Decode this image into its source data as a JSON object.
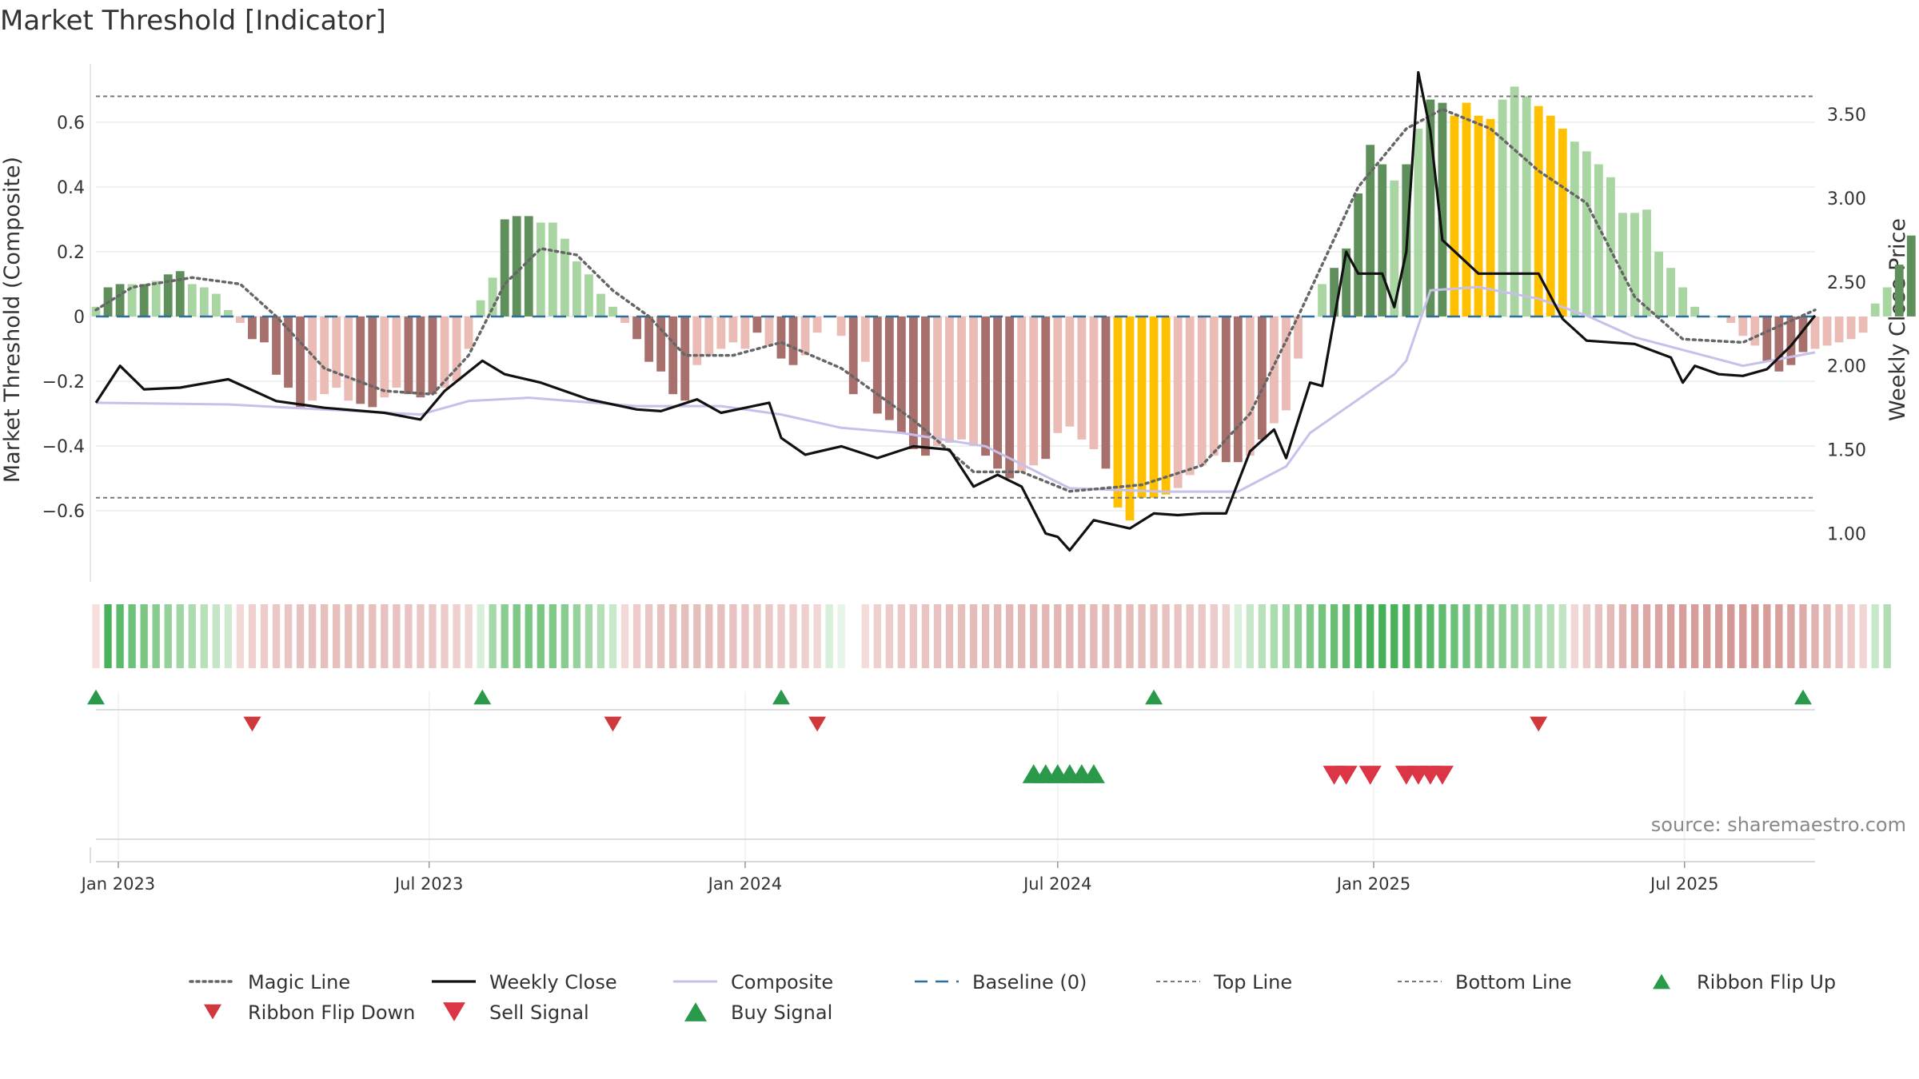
{
  "chart_data": {
    "type": "bar",
    "title": "Market Threshold [Indicator]",
    "ylabel_left": "Market Threshold (Composite)",
    "ylabel_right": "Weekly Close Price",
    "source": "source: sharemaestro.com",
    "left_axis": {
      "ylim": [
        -0.8,
        0.78
      ],
      "ticks": [
        0.6,
        0.4,
        0.2,
        0,
        -0.2,
        -0.4,
        -0.6
      ],
      "tick_labels": [
        "0.6",
        "0.4",
        "0.2",
        "0",
        "−0.2",
        "−0.4",
        "−0.6"
      ]
    },
    "right_axis": {
      "ylim": [
        0.75,
        3.8
      ],
      "ticks": [
        3.5,
        3.0,
        2.5,
        2.0,
        1.5,
        1.0
      ],
      "tick_labels": [
        "3.50",
        "3.00",
        "2.50",
        "2.00",
        "1.50",
        "1.00"
      ]
    },
    "x_axis": {
      "start_date": "2022-12-19",
      "end_date": "2025-09-15",
      "ticks": [
        "2023-01-01",
        "2023-07-01",
        "2024-01-01",
        "2024-07-01",
        "2025-01-01",
        "2025-07-01"
      ],
      "tick_labels": [
        "Jan 2023",
        "Jul 2023",
        "Jan 2024",
        "Jul 2024",
        "Jan 2025",
        "Jul 2025"
      ]
    },
    "top_line": 0.68,
    "bottom_line": -0.56,
    "baseline": 0,
    "grid": true,
    "legend_position": "bottom",
    "colors": {
      "dark_green": "#5f8f5a",
      "light_green": "#a8d5a2",
      "dark_red": "#a8706c",
      "light_red": "#ebbcb6",
      "extreme": "#ffc000",
      "weekly_close": "#111111",
      "composite": "#c8c0ea",
      "magic": "#666666",
      "baseline": "#2d6e9c",
      "threshold_line": "#777777",
      "flip_up": "#2a9a4a",
      "flip_down": "#d0383c"
    },
    "series": [
      {
        "name": "Composite",
        "kind": "bar",
        "start_date": "2022-12-19",
        "values": [
          0.03,
          0.09,
          0.1,
          0.1,
          0.1,
          0.11,
          0.13,
          0.14,
          0.1,
          0.09,
          0.07,
          0.02,
          -0.02,
          -0.07,
          -0.08,
          -0.18,
          -0.22,
          -0.28,
          -0.26,
          -0.24,
          -0.22,
          -0.26,
          -0.27,
          -0.28,
          -0.25,
          -0.22,
          -0.24,
          -0.25,
          -0.24,
          -0.22,
          -0.2,
          -0.1,
          0.05,
          0.12,
          0.3,
          0.31,
          0.31,
          0.29,
          0.29,
          0.24,
          0.17,
          0.13,
          0.07,
          0.03,
          -0.02,
          -0.07,
          -0.14,
          -0.17,
          -0.24,
          -0.26,
          -0.15,
          -0.12,
          -0.1,
          -0.08,
          -0.1,
          -0.05,
          -0.09,
          -0.13,
          -0.15,
          -0.12,
          -0.05,
          0.0,
          -0.06,
          -0.24,
          -0.14,
          -0.3,
          -0.32,
          -0.36,
          -0.41,
          -0.43,
          -0.4,
          -0.39,
          -0.38,
          -0.4,
          -0.43,
          -0.47,
          -0.5,
          -0.48,
          -0.46,
          -0.44,
          -0.36,
          -0.34,
          -0.38,
          -0.41,
          -0.47,
          -0.59,
          -0.63,
          -0.56,
          -0.56,
          -0.55,
          -0.53,
          -0.49,
          -0.46,
          -0.43,
          -0.45,
          -0.45,
          -0.43,
          -0.38,
          -0.33,
          -0.29,
          -0.13,
          0.0,
          0.1,
          0.15,
          0.21,
          0.38,
          0.53,
          0.47,
          0.42,
          0.47,
          0.58,
          0.67,
          0.66,
          0.62,
          0.66,
          0.62,
          0.61,
          0.67,
          0.71,
          0.68,
          0.65,
          0.62,
          0.58,
          0.54,
          0.51,
          0.47,
          0.43,
          0.32,
          0.32,
          0.33,
          0.2,
          0.15,
          0.09,
          0.03,
          0.0,
          0.0,
          -0.02,
          -0.06,
          -0.09,
          -0.14,
          -0.17,
          -0.15,
          -0.11,
          -0.1,
          -0.09,
          -0.08,
          -0.07,
          -0.05,
          0.04,
          0.09,
          0.16,
          0.25
        ],
        "shade": [
          "L",
          "D",
          "D",
          "L",
          "D",
          "L",
          "D",
          "D",
          "L",
          "L",
          "L",
          "L",
          "L",
          "D",
          "D",
          "D",
          "D",
          "D",
          "L",
          "L",
          "L",
          "L",
          "D",
          "D",
          "L",
          "L",
          "D",
          "D",
          "D",
          "L",
          "L",
          "L",
          "L",
          "L",
          "D",
          "D",
          "D",
          "L",
          "L",
          "L",
          "L",
          "L",
          "L",
          "L",
          "L",
          "D",
          "D",
          "D",
          "D",
          "D",
          "L",
          "L",
          "L",
          "L",
          "L",
          "D",
          "L",
          "D",
          "D",
          "L",
          "L",
          "L",
          "L",
          "D",
          "L",
          "D",
          "D",
          "D",
          "D",
          "D",
          "L",
          "L",
          "L",
          "L",
          "D",
          "D",
          "D",
          "L",
          "L",
          "D",
          "L",
          "L",
          "L",
          "L",
          "D",
          "E",
          "E",
          "E",
          "E",
          "E",
          "L",
          "L",
          "L",
          "L",
          "D",
          "D",
          "L",
          "D",
          "L",
          "L",
          "L",
          "L",
          "L",
          "D",
          "D",
          "D",
          "D",
          "D",
          "L",
          "D",
          "L",
          "D",
          "D",
          "E",
          "E",
          "E",
          "E",
          "L",
          "L",
          "L",
          "E",
          "E",
          "E",
          "L",
          "L",
          "L",
          "L",
          "L",
          "L",
          "L",
          "L",
          "L",
          "L",
          "L",
          "L",
          "L",
          "L",
          "L",
          "L",
          "D",
          "D",
          "D",
          "D",
          "L",
          "L",
          "L",
          "L",
          "L",
          "L",
          "L",
          "D",
          "D",
          "D"
        ]
      },
      {
        "name": "Weekly Close",
        "kind": "line",
        "axis": "right",
        "points": [
          [
            "2022-12-19",
            1.78
          ],
          [
            "2023-01-02",
            2.0
          ],
          [
            "2023-01-16",
            1.86
          ],
          [
            "2023-02-06",
            1.87
          ],
          [
            "2023-03-06",
            1.92
          ],
          [
            "2023-04-03",
            1.79
          ],
          [
            "2023-05-01",
            1.75
          ],
          [
            "2023-06-05",
            1.72
          ],
          [
            "2023-06-26",
            1.68
          ],
          [
            "2023-07-10",
            1.85
          ],
          [
            "2023-08-01",
            2.03
          ],
          [
            "2023-08-14",
            1.95
          ],
          [
            "2023-09-04",
            1.9
          ],
          [
            "2023-10-02",
            1.8
          ],
          [
            "2023-10-30",
            1.74
          ],
          [
            "2023-11-13",
            1.73
          ],
          [
            "2023-12-04",
            1.8
          ],
          [
            "2023-12-18",
            1.72
          ],
          [
            "2024-01-15",
            1.78
          ],
          [
            "2024-01-22",
            1.57
          ],
          [
            "2024-02-05",
            1.47
          ],
          [
            "2024-02-26",
            1.52
          ],
          [
            "2024-03-18",
            1.45
          ],
          [
            "2024-04-08",
            1.52
          ],
          [
            "2024-04-29",
            1.5
          ],
          [
            "2024-05-13",
            1.28
          ],
          [
            "2024-05-27",
            1.35
          ],
          [
            "2024-06-10",
            1.28
          ],
          [
            "2024-06-24",
            1.0
          ],
          [
            "2024-07-01",
            0.98
          ],
          [
            "2024-07-08",
            0.9
          ],
          [
            "2024-07-22",
            1.08
          ],
          [
            "2024-08-12",
            1.03
          ],
          [
            "2024-08-26",
            1.12
          ],
          [
            "2024-09-09",
            1.11
          ],
          [
            "2024-09-23",
            1.12
          ],
          [
            "2024-10-07",
            1.12
          ],
          [
            "2024-10-21",
            1.49
          ],
          [
            "2024-11-04",
            1.62
          ],
          [
            "2024-11-11",
            1.45
          ],
          [
            "2024-11-25",
            1.9
          ],
          [
            "2024-12-02",
            1.88
          ],
          [
            "2024-12-16",
            2.68
          ],
          [
            "2024-12-23",
            2.55
          ],
          [
            "2025-01-06",
            2.55
          ],
          [
            "2025-01-13",
            2.35
          ],
          [
            "2025-01-20",
            2.68
          ],
          [
            "2025-01-27",
            3.75
          ],
          [
            "2025-02-03",
            3.4
          ],
          [
            "2025-02-10",
            2.75
          ],
          [
            "2025-03-03",
            2.55
          ],
          [
            "2025-04-07",
            2.55
          ],
          [
            "2025-04-21",
            2.28
          ],
          [
            "2025-05-05",
            2.15
          ],
          [
            "2025-06-02",
            2.13
          ],
          [
            "2025-06-23",
            2.05
          ],
          [
            "2025-06-30",
            1.9
          ],
          [
            "2025-07-07",
            2.0
          ],
          [
            "2025-07-21",
            1.95
          ],
          [
            "2025-08-04",
            1.94
          ],
          [
            "2025-08-18",
            1.98
          ],
          [
            "2025-09-01",
            2.12
          ],
          [
            "2025-09-15",
            2.3
          ]
        ]
      },
      {
        "name": "Magic Line",
        "kind": "line",
        "style": "dotted",
        "points": [
          [
            "2022-12-19",
            0.02
          ],
          [
            "2023-01-09",
            0.09
          ],
          [
            "2023-02-13",
            0.12
          ],
          [
            "2023-03-13",
            0.1
          ],
          [
            "2023-04-03",
            0.0
          ],
          [
            "2023-05-01",
            -0.16
          ],
          [
            "2023-06-05",
            -0.23
          ],
          [
            "2023-07-03",
            -0.24
          ],
          [
            "2023-07-24",
            -0.12
          ],
          [
            "2023-08-14",
            0.1
          ],
          [
            "2023-09-04",
            0.21
          ],
          [
            "2023-09-25",
            0.19
          ],
          [
            "2023-10-16",
            0.08
          ],
          [
            "2023-11-06",
            0.0
          ],
          [
            "2023-11-27",
            -0.12
          ],
          [
            "2023-12-25",
            -0.12
          ],
          [
            "2024-01-22",
            -0.08
          ],
          [
            "2024-02-26",
            -0.16
          ],
          [
            "2024-04-08",
            -0.32
          ],
          [
            "2024-05-13",
            -0.48
          ],
          [
            "2024-06-10",
            -0.48
          ],
          [
            "2024-07-08",
            -0.54
          ],
          [
            "2024-08-19",
            -0.52
          ],
          [
            "2024-09-23",
            -0.46
          ],
          [
            "2024-10-21",
            -0.3
          ],
          [
            "2024-11-18",
            0.0
          ],
          [
            "2024-12-23",
            0.4
          ],
          [
            "2025-01-20",
            0.58
          ],
          [
            "2025-02-10",
            0.64
          ],
          [
            "2025-03-10",
            0.58
          ],
          [
            "2025-04-07",
            0.45
          ],
          [
            "2025-05-05",
            0.35
          ],
          [
            "2025-06-02",
            0.06
          ],
          [
            "2025-06-30",
            -0.07
          ],
          [
            "2025-08-04",
            -0.08
          ],
          [
            "2025-09-15",
            0.02
          ]
        ]
      },
      {
        "name": "Composite",
        "kind": "line",
        "axis": "right",
        "points": [
          [
            "2022-12-19",
            1.78
          ],
          [
            "2023-03-06",
            1.77
          ],
          [
            "2023-06-26",
            1.71
          ],
          [
            "2023-07-24",
            1.79
          ],
          [
            "2023-08-28",
            1.81
          ],
          [
            "2023-10-30",
            1.76
          ],
          [
            "2023-12-18",
            1.76
          ],
          [
            "2024-01-22",
            1.71
          ],
          [
            "2024-02-26",
            1.63
          ],
          [
            "2024-04-01",
            1.6
          ],
          [
            "2024-05-20",
            1.52
          ],
          [
            "2024-07-08",
            1.27
          ],
          [
            "2024-09-02",
            1.25
          ],
          [
            "2024-10-14",
            1.25
          ],
          [
            "2024-11-11",
            1.4
          ],
          [
            "2024-11-25",
            1.6
          ],
          [
            "2024-12-16",
            1.75
          ],
          [
            "2025-01-13",
            1.95
          ],
          [
            "2025-01-20",
            2.03
          ],
          [
            "2025-02-03",
            2.45
          ],
          [
            "2025-03-03",
            2.47
          ],
          [
            "2025-04-07",
            2.4
          ],
          [
            "2025-05-05",
            2.3
          ],
          [
            "2025-06-02",
            2.17
          ],
          [
            "2025-08-04",
            2.0
          ],
          [
            "2025-09-15",
            2.08
          ]
        ]
      },
      {
        "name": "Baseline (0)",
        "kind": "line",
        "style": "dashed"
      },
      {
        "name": "Top Line",
        "kind": "line",
        "style": "dashed"
      },
      {
        "name": "Bottom Line",
        "kind": "line",
        "style": "dashed"
      }
    ],
    "ribbon": {
      "start_date": "2022-12-19",
      "gap_dates": [
        "2024-02-05"
      ],
      "colors": [
        "#f6dedd",
        "#4ab25c",
        "#5bba6b",
        "#6cc27a",
        "#7ac784",
        "#88cc90",
        "#94d19b",
        "#a0d6a5",
        "#acdbb0",
        "#b8e0bb",
        "#c4e5c6",
        "#d0ead1",
        "#f2d9d8",
        "#eed0ce",
        "#edcccb",
        "#ebc8c6",
        "#eac5c3",
        "#e8c2c0",
        "#e8c2c0",
        "#e7c0be",
        "#e7c0be",
        "#e7c0be",
        "#e7c0be",
        "#e7c0be",
        "#e8c2c0",
        "#e8c2c0",
        "#e9c4c2",
        "#eac6c4",
        "#ebc8c6",
        "#eccbc9",
        "#eed0ce",
        "#f0d6d4",
        "#d8efd9",
        "#a6d8aa",
        "#8acd91",
        "#7fc887",
        "#7ac784",
        "#7ac784",
        "#80c988",
        "#88cc90",
        "#96d29c",
        "#a6d8aa",
        "#b4dfb7",
        "#c8e8ca",
        "#f2d9d8",
        "#edcccb",
        "#eac6c4",
        "#e8c2c0",
        "#e7c0be",
        "#e6bebc",
        "#e6bebc",
        "#e6bebc",
        "#e7c0be",
        "#e8c2c0",
        "#e9c4c2",
        "#eac6c4",
        "#ebc8c6",
        "#eccbc9",
        "#edcccb",
        "#eed0ce",
        "#f0d6d4",
        "#d8efd9",
        "#e6f5e7",
        "#ffffff",
        "#f4dcdb",
        "#eed0ce",
        "#ecccca",
        "#ebc8c6",
        "#eac6c4",
        "#e9c4c2",
        "#e8c2c0",
        "#e7c0be",
        "#e6bebc",
        "#e5bcba",
        "#e5bcba",
        "#e4bab8",
        "#e3b8b6",
        "#e3b8b6",
        "#e2b6b4",
        "#e2b6b4",
        "#e2b6b4",
        "#e3b8b6",
        "#e3b8b6",
        "#e4bab8",
        "#e4bab8",
        "#e4bab8",
        "#e5bcba",
        "#e6bebc",
        "#e7c0be",
        "#e8c2c0",
        "#e9c4c2",
        "#eac6c4",
        "#ebc8c6",
        "#ecccca",
        "#eed0ce",
        "#d8efd9",
        "#c6e7c8",
        "#b8e0bb",
        "#aadcae",
        "#9cd4a1",
        "#8ecf95",
        "#80c988",
        "#74c47e",
        "#68bf74",
        "#5cba6a",
        "#50b560",
        "#48b159",
        "#46b058",
        "#48b159",
        "#4cb35c",
        "#52b662",
        "#5ab969",
        "#62bc70",
        "#6ac078",
        "#72c37f",
        "#7ac784",
        "#82ca8a",
        "#8ccd92",
        "#96d29c",
        "#a0d6a5",
        "#aadcae",
        "#b4dfb7",
        "#c0e3c2",
        "#f0d6d4",
        "#eccbc9",
        "#e8c2c0",
        "#e4bab8",
        "#e0b2b0",
        "#ddaca9",
        "#dba8a5",
        "#d9a4a1",
        "#d8a19e",
        "#d79f9c",
        "#d69d9a",
        "#d59b98",
        "#d59b98",
        "#d49996",
        "#d49996",
        "#d59b98",
        "#d69d9a",
        "#d8a19e",
        "#daa6a3",
        "#ddaca9",
        "#e0b2b0",
        "#e4bab8",
        "#e8c2c0",
        "#eccbc9",
        "#f0d6d4",
        "#c8e8ca",
        "#b0ddb4"
      ]
    },
    "markers": {
      "ribbon_flip_up": [
        "2022-12-19",
        "2023-08-01",
        "2024-01-22",
        "2024-08-26",
        "2025-09-08"
      ],
      "ribbon_flip_down": [
        "2023-03-20",
        "2023-10-16",
        "2024-02-12",
        "2025-04-07"
      ],
      "buy_signal": [
        "2024-06-17",
        "2024-06-24",
        "2024-07-01",
        "2024-07-08",
        "2024-07-15",
        "2024-07-22"
      ],
      "sell_signal": [
        "2024-12-09",
        "2024-12-16",
        "2024-12-30",
        "2025-01-20",
        "2025-01-27",
        "2025-02-03",
        "2025-02-10"
      ]
    }
  }
}
